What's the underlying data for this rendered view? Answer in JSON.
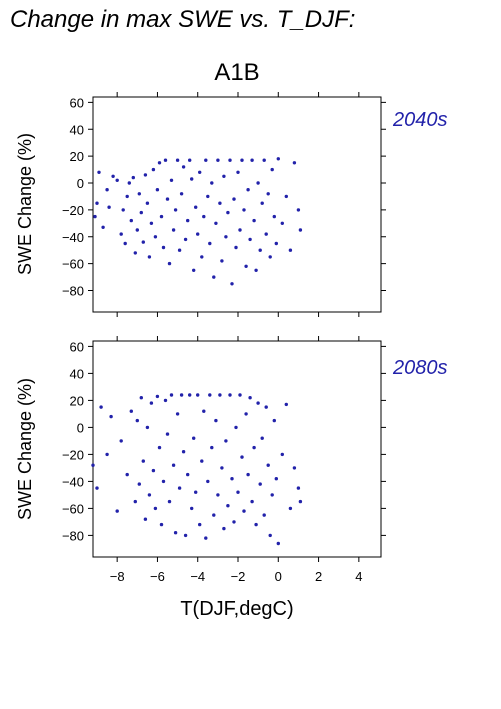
{
  "header": {
    "title": "Change in max SWE vs. T_DJF:"
  },
  "chart_data": [
    {
      "type": "scatter",
      "title": "A1B",
      "panel_label": "2040s",
      "xlabel": "T(DJF,degC)",
      "ylabel": "SWE Change (%)",
      "xlim": [
        -9.2,
        5.1
      ],
      "ylim": [
        -96,
        64
      ],
      "xticks": [
        -8,
        -6,
        -4,
        -2,
        0,
        2,
        4
      ],
      "xtick_labels": [
        "−8",
        "−6",
        "−4",
        "−2",
        "0",
        "2",
        "4"
      ],
      "yticks": [
        60,
        40,
        20,
        0,
        -20,
        -40,
        -60,
        -80
      ],
      "ytick_labels": [
        "60",
        "40",
        "20",
        "0",
        "−20",
        "−40",
        "−60",
        "−80"
      ],
      "marker_color": "#2222aa",
      "series": [
        {
          "x": [
            -9.1,
            -9.0,
            -8.9,
            -8.7,
            -8.5,
            -8.4,
            -8.2,
            -8.0,
            -7.8,
            -7.7,
            -7.6,
            -7.5,
            -7.4,
            -7.3,
            -7.2,
            -7.1,
            -7.0,
            -6.9,
            -6.8,
            -6.7,
            -6.6,
            -6.5,
            -6.4,
            -6.3,
            -6.2,
            -6.1,
            -6.0,
            -5.9,
            -5.8,
            -5.7,
            -5.6,
            -5.5,
            -5.4,
            -5.3,
            -5.2,
            -5.1,
            -5.0,
            -4.9,
            -4.8,
            -4.7,
            -4.6,
            -4.5,
            -4.4,
            -4.3,
            -4.2,
            -4.1,
            -4.0,
            -3.9,
            -3.8,
            -3.7,
            -3.6,
            -3.5,
            -3.4,
            -3.3,
            -3.2,
            -3.1,
            -3.0,
            -2.9,
            -2.8,
            -2.7,
            -2.6,
            -2.5,
            -2.4,
            -2.3,
            -2.2,
            -2.1,
            -2.0,
            -1.9,
            -1.8,
            -1.7,
            -1.6,
            -1.5,
            -1.4,
            -1.3,
            -1.2,
            -1.1,
            -1.0,
            -0.9,
            -0.8,
            -0.7,
            -0.6,
            -0.5,
            -0.4,
            -0.3,
            -0.2,
            -0.1,
            0.0,
            0.2,
            0.4,
            0.6,
            0.8,
            1.0,
            1.1
          ],
          "y": [
            -25,
            -15,
            8,
            -33,
            -5,
            -18,
            5,
            2,
            -38,
            -20,
            -45,
            -10,
            0,
            -28,
            4,
            -52,
            -35,
            -8,
            -22,
            -44,
            6,
            -15,
            -55,
            -30,
            10,
            -40,
            -5,
            15,
            -25,
            -48,
            17,
            -12,
            -60,
            2,
            -35,
            -20,
            17,
            -50,
            -8,
            12,
            -42,
            -28,
            17,
            3,
            -65,
            -18,
            -38,
            8,
            -55,
            -25,
            17,
            -10,
            -45,
            0,
            -70,
            -30,
            17,
            -15,
            -58,
            5,
            -40,
            -22,
            17,
            -75,
            -12,
            -48,
            8,
            -35,
            17,
            -20,
            -62,
            -5,
            -42,
            17,
            -28,
            -65,
            0,
            -50,
            -15,
            17,
            -38,
            -8,
            -55,
            10,
            -25,
            -45,
            18,
            -30,
            -10,
            -50,
            15,
            -20,
            -35
          ]
        }
      ]
    },
    {
      "type": "scatter",
      "panel_label": "2080s",
      "xlabel": "T(DJF,degC)",
      "ylabel": "SWE Change (%)",
      "xlim": [
        -9.2,
        5.1
      ],
      "ylim": [
        -96,
        64
      ],
      "xticks": [
        -8,
        -6,
        -4,
        -2,
        0,
        2,
        4
      ],
      "xtick_labels": [
        "−8",
        "−6",
        "−4",
        "−2",
        "0",
        "2",
        "4"
      ],
      "yticks": [
        60,
        40,
        20,
        0,
        -20,
        -40,
        -60,
        -80
      ],
      "ytick_labels": [
        "60",
        "40",
        "20",
        "0",
        "−20",
        "−40",
        "−60",
        "−80"
      ],
      "marker_color": "#2222aa",
      "series": [
        {
          "x": [
            -9.2,
            -9.0,
            -8.8,
            -8.5,
            -8.3,
            -8.0,
            -7.8,
            -7.5,
            -7.3,
            -7.1,
            -7.0,
            -6.9,
            -6.8,
            -6.7,
            -6.6,
            -6.5,
            -6.4,
            -6.3,
            -6.2,
            -6.1,
            -6.0,
            -5.9,
            -5.8,
            -5.7,
            -5.6,
            -5.5,
            -5.4,
            -5.3,
            -5.2,
            -5.1,
            -5.0,
            -4.9,
            -4.8,
            -4.7,
            -4.6,
            -4.5,
            -4.4,
            -4.3,
            -4.2,
            -4.1,
            -4.0,
            -3.9,
            -3.8,
            -3.7,
            -3.6,
            -3.5,
            -3.4,
            -3.3,
            -3.2,
            -3.1,
            -3.0,
            -2.9,
            -2.8,
            -2.7,
            -2.6,
            -2.5,
            -2.4,
            -2.3,
            -2.2,
            -2.1,
            -2.0,
            -1.9,
            -1.8,
            -1.7,
            -1.6,
            -1.5,
            -1.4,
            -1.3,
            -1.2,
            -1.1,
            -1.0,
            -0.9,
            -0.8,
            -0.7,
            -0.6,
            -0.5,
            -0.4,
            -0.3,
            -0.2,
            -0.1,
            0.0,
            0.2,
            0.4,
            0.6,
            0.8,
            1.0,
            1.1
          ],
          "y": [
            -28,
            -45,
            15,
            -20,
            8,
            -62,
            -10,
            -35,
            12,
            -55,
            5,
            -42,
            22,
            -25,
            -68,
            0,
            -50,
            18,
            -32,
            -60,
            23,
            -15,
            -72,
            -40,
            20,
            -5,
            -55,
            24,
            -28,
            -78,
            10,
            -45,
            24,
            -18,
            -80,
            -35,
            24,
            -60,
            -8,
            -48,
            24,
            -72,
            -25,
            12,
            -82,
            -40,
            24,
            -15,
            -65,
            5,
            -50,
            24,
            -30,
            -75,
            -10,
            -58,
            24,
            -38,
            -70,
            0,
            -48,
            24,
            -22,
            -62,
            10,
            -35,
            22,
            -55,
            -15,
            -72,
            18,
            -42,
            -8,
            -65,
            15,
            -28,
            -80,
            -50,
            5,
            -38,
            -86,
            -20,
            17,
            -60,
            -30,
            -45,
            -55
          ]
        }
      ]
    }
  ]
}
